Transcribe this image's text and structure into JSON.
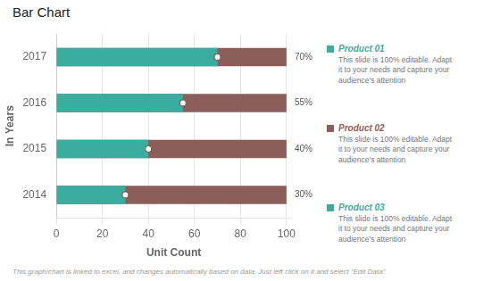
{
  "chart_data": {
    "type": "bar",
    "orientation": "horizontal",
    "title": "Bar Chart",
    "xlabel": "Unit Count",
    "ylabel": "In Years",
    "categories": [
      "2017",
      "2016",
      "2015",
      "2014"
    ],
    "series": [
      {
        "color": "#8b5e5a",
        "values": [
          100,
          100,
          100,
          100
        ]
      },
      {
        "color": "#3aada0",
        "values": [
          70,
          55,
          40,
          30
        ],
        "marker": "circle",
        "value_labels": [
          "70%",
          "55%",
          "40%",
          "30%"
        ]
      }
    ],
    "data_labels": true,
    "xlim": [
      0,
      102
    ],
    "xticks": [
      0,
      20,
      40,
      60,
      80,
      100
    ],
    "grid": true,
    "annotations": [
      {
        "label": "Product 01",
        "color": "#3aada0",
        "text": "This slide is 100% editable. Adapt\nit to your needs and capture your\naudience's attention"
      },
      {
        "label": "Product 02",
        "color": "#8b5e5a",
        "text": "This slide is 100% editable. Adapt\nit to your needs and capture your\naudience's attention"
      },
      {
        "label": "Product 03",
        "color": "#3aada0",
        "text": "This slide is 100% editable. Adapt\nit to your needs and capture your\naudience's attention"
      }
    ],
    "footnote": "This graph/chart is linked to excel, and changes automatically based on data. Just left click on it and select \"Edit Data\""
  }
}
